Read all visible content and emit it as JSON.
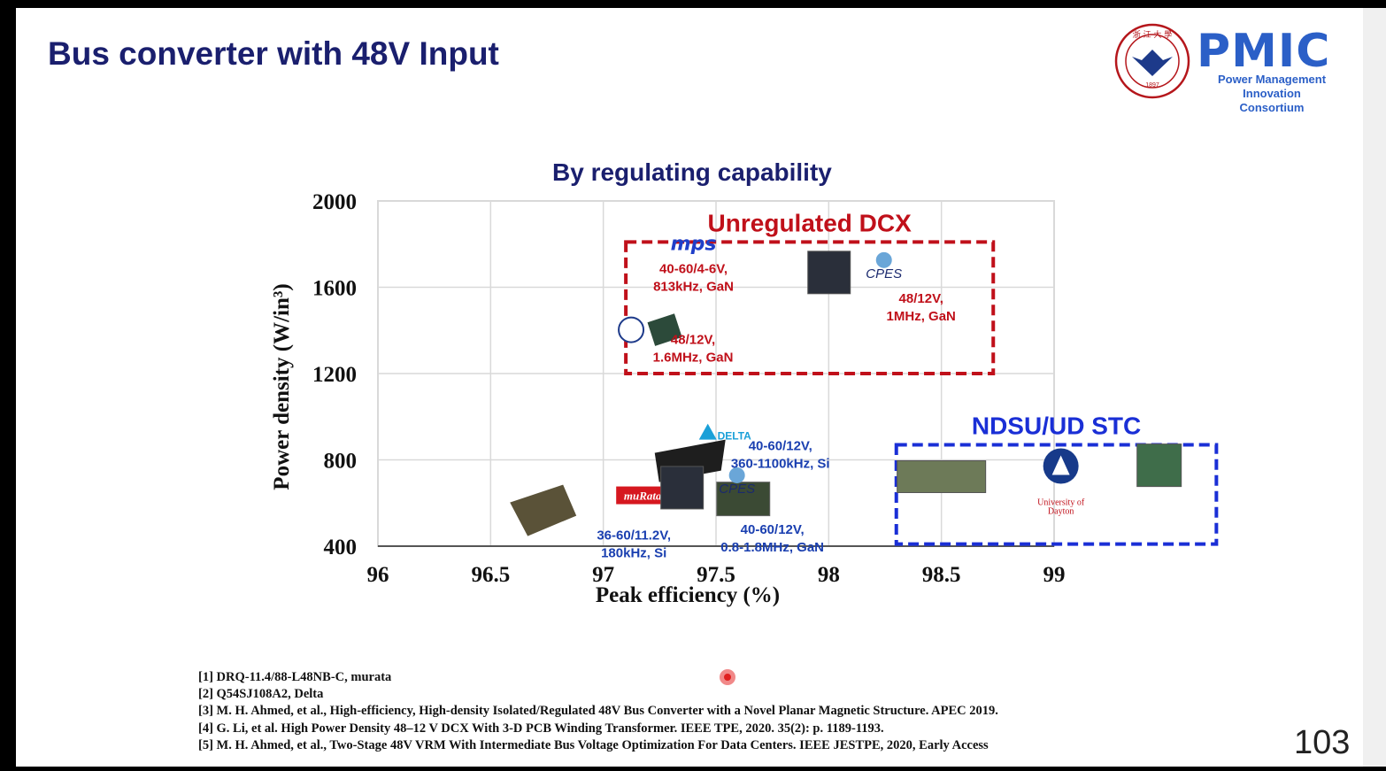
{
  "slide": {
    "title": "Bus converter with 48V Input",
    "page_number": "103",
    "logo": {
      "name": "PMIC",
      "subtitle_line1": "Power Management",
      "subtitle_line2": "Innovation Consortium",
      "seal_text": "ZHEJIANG UNIVERSITY",
      "seal_year": "1897"
    }
  },
  "references": [
    "[1] DRQ-11.4/88-L48NB-C, murata",
    "[2] Q54SJ108A2, Delta",
    "[3] M. H. Ahmed, et al., High-efficiency, High-density Isolated/Regulated 48V Bus Converter with a Novel Planar Magnetic Structure. APEC 2019.",
    "[4] G. Li, et al. High Power Density 48–12 V DCX With 3-D PCB Winding Transformer. IEEE TPE, 2020. 35(2): p. 1189-1193.",
    "[5] M. H. Ahmed, et al., Two-Stage 48V VRM With Intermediate Bus Voltage Optimization For Data Centers. IEEE JESTPE, 2020, Early Access"
  ],
  "colors": {
    "title": "#1a1f6e",
    "unregulated": "#c0101a",
    "ndsu": "#1a2fd6",
    "annotation_blue": "#1a3fb0",
    "grid": "#d9d9d9"
  },
  "chart_data": {
    "type": "scatter",
    "title": "By regulating capability",
    "xlabel": "Peak efficiency (%)",
    "ylabel": "Power density (W/in³)",
    "xlim": [
      96,
      99.5
    ],
    "ylim": [
      400,
      2000
    ],
    "x_ticks": [
      "96",
      "96.5",
      "97",
      "97.5",
      "98",
      "98.5",
      "99"
    ],
    "y_ticks": [
      "2000",
      "1600",
      "1200",
      "800",
      "400"
    ],
    "grid": true,
    "regions": [
      {
        "label": "Unregulated DCX",
        "x_range": [
          97.1,
          98.73
        ],
        "y_range": [
          1200,
          1810
        ],
        "color": "#c0101a"
      },
      {
        "label": "NDSU/UD STC",
        "x_range": [
          98.3,
          99.72
        ],
        "y_range": [
          410,
          870
        ],
        "color": "#1a2fd6"
      }
    ],
    "points": [
      {
        "brand": "MPS",
        "x": 97.4,
        "y": 1690,
        "label_line1": "40-60/4-6V,",
        "label_line2": "813kHz, GaN",
        "group": "Unregulated DCX"
      },
      {
        "brand": "Zhejiang University",
        "x": 97.3,
        "y": 1370,
        "label_line1": "48/12V,",
        "label_line2": "1.6MHz, GaN",
        "group": "Unregulated DCX"
      },
      {
        "brand": "CPES",
        "x": 98.3,
        "y": 1570,
        "label_line1": "48/12V,",
        "label_line2": "1MHz, GaN",
        "group": "Unregulated DCX"
      },
      {
        "brand": "DELTA",
        "x": 97.55,
        "y": 820,
        "label_line1": "40-60/12V,",
        "label_line2": "360-1100kHz, Si",
        "group": "Regulated"
      },
      {
        "brand": "muRata",
        "x": 96.9,
        "y": 570,
        "label_line1": "36-60/11.2V,",
        "label_line2": "180kHz, Si",
        "group": "Regulated"
      },
      {
        "brand": "CPES",
        "x": 97.75,
        "y": 630,
        "label_line1": "40-60/12V,",
        "label_line2": "0.8-1.8MHz, GaN",
        "group": "Regulated"
      },
      {
        "brand": "NDSU",
        "x": 98.5,
        "y": 640,
        "group": "NDSU/UD STC"
      },
      {
        "brand": "University of Dayton",
        "x": 99.03,
        "y": 640,
        "label_line1": "University of",
        "label_line2": "Dayton",
        "group": "NDSU/UD STC"
      },
      {
        "brand": "UD board",
        "x": 99.47,
        "y": 660,
        "group": "NDSU/UD STC"
      }
    ]
  }
}
